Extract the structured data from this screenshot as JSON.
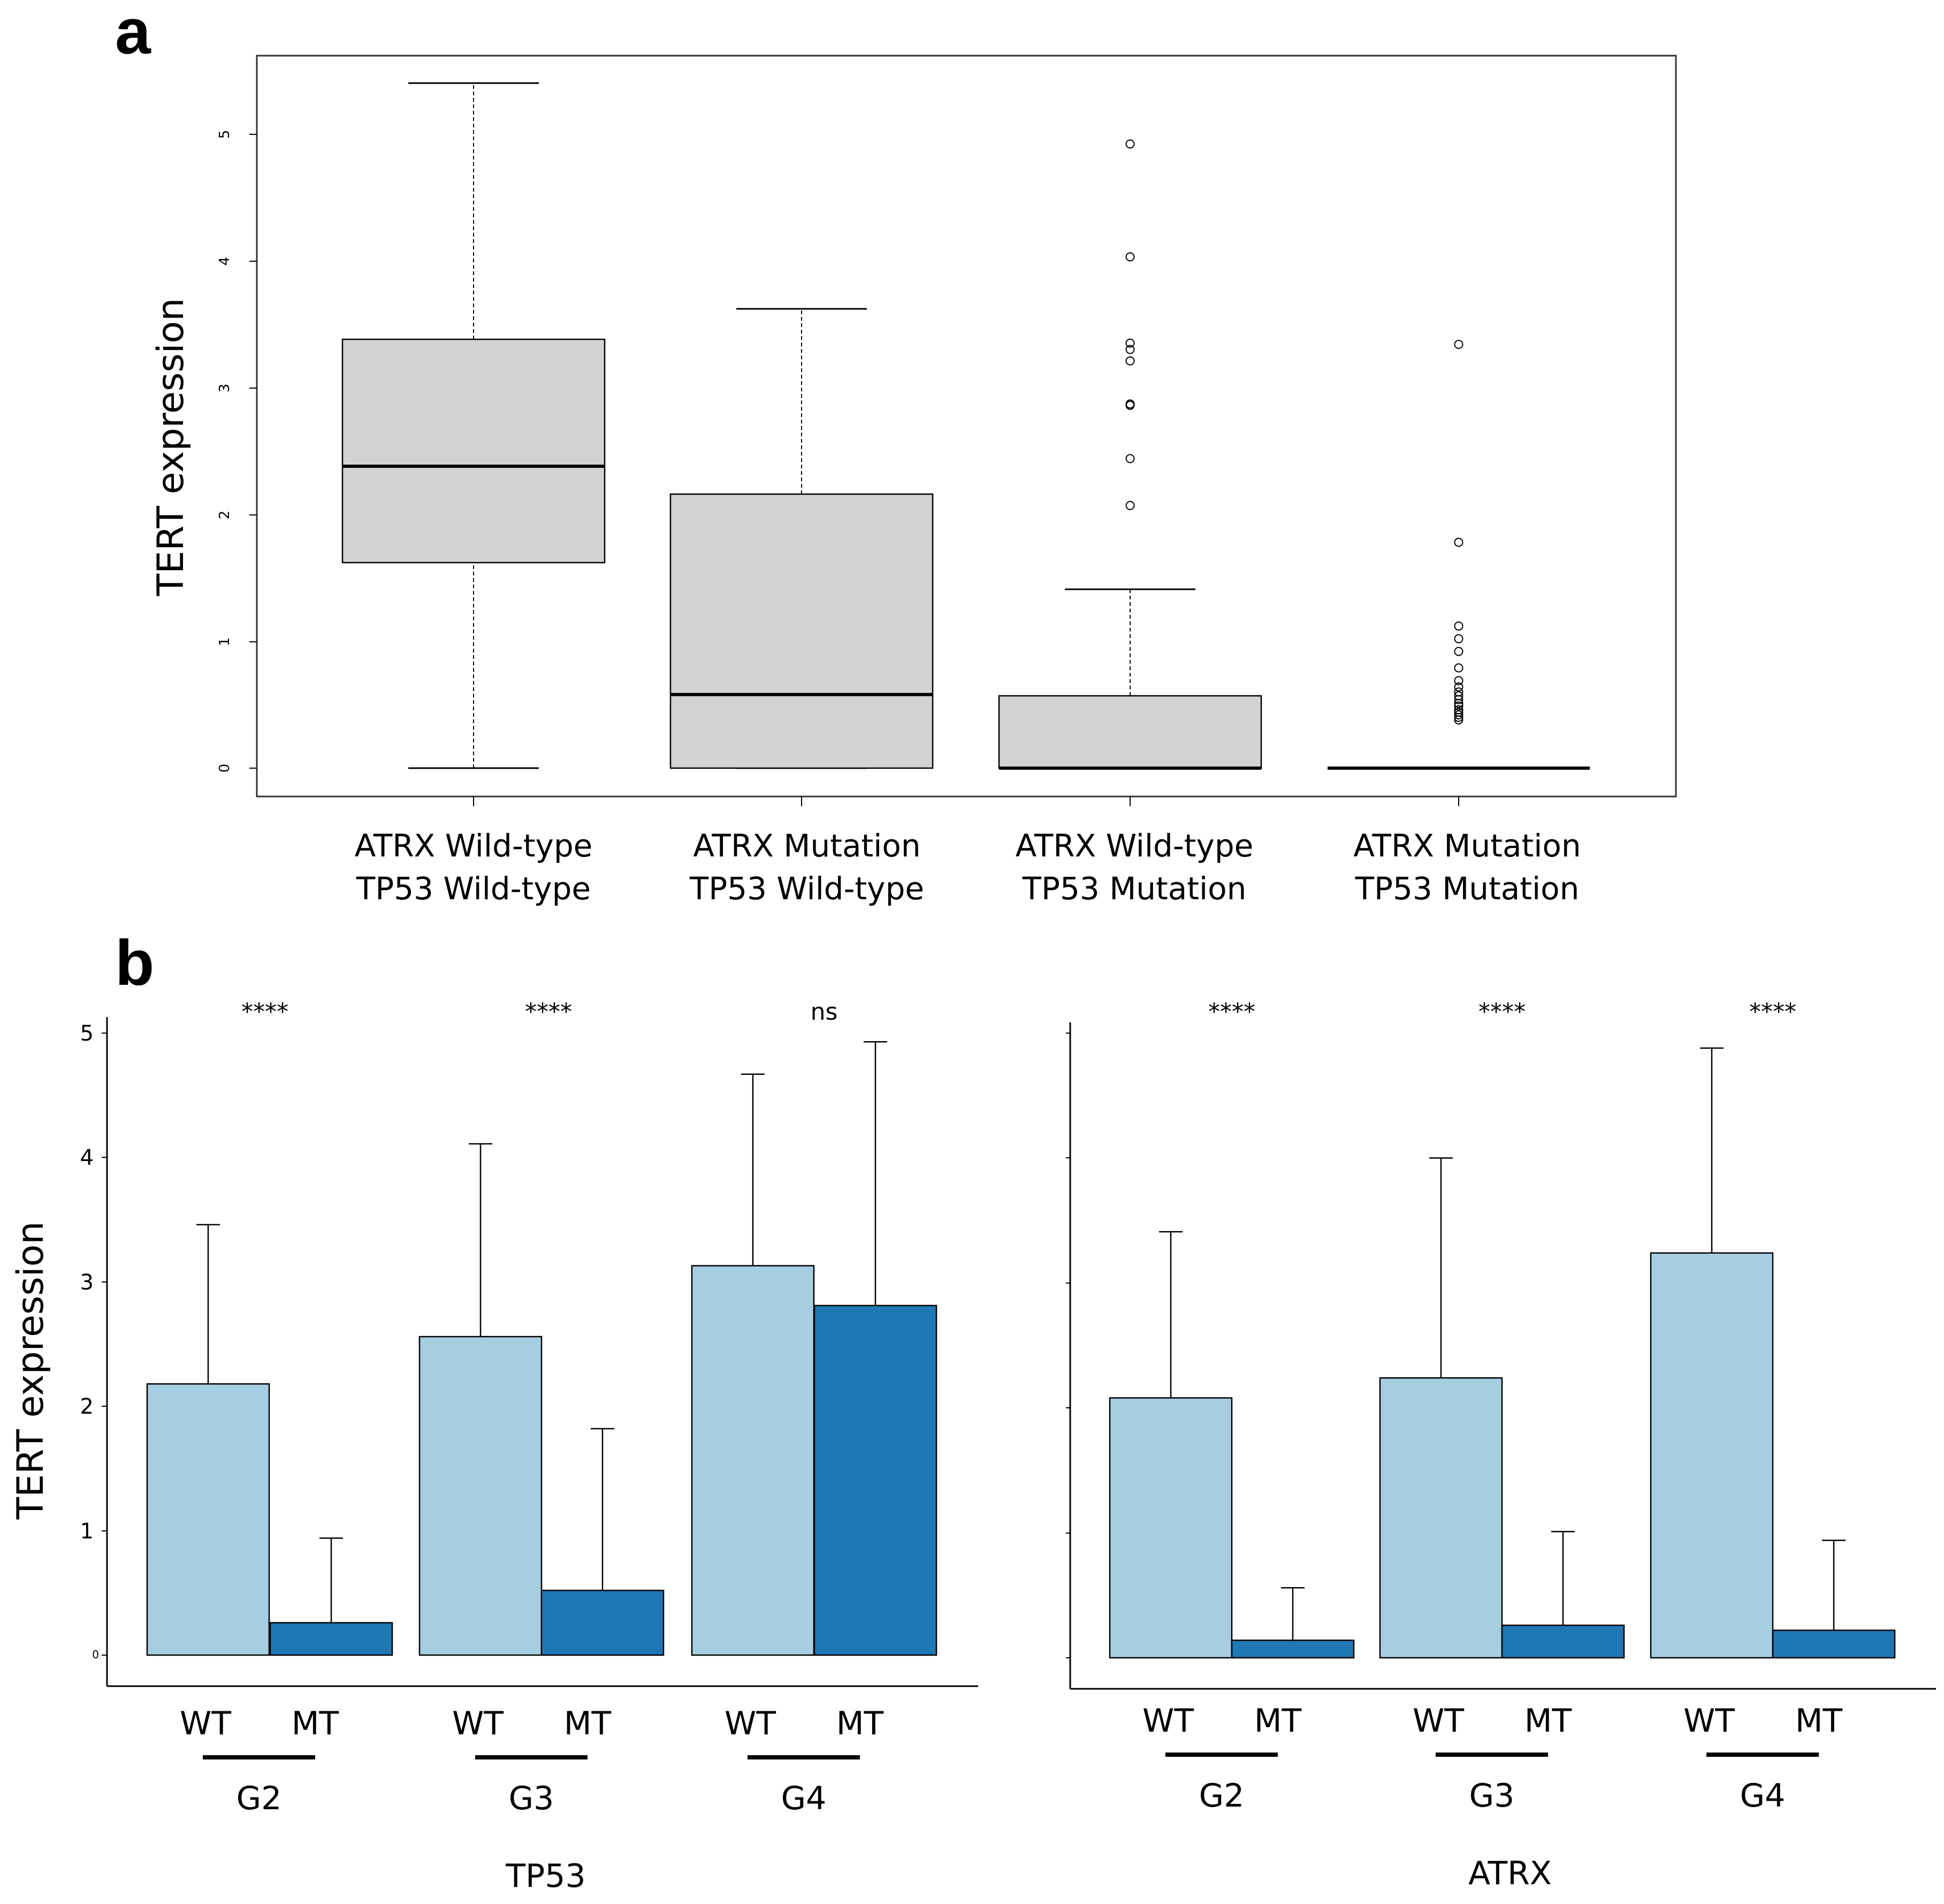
{
  "panels": {
    "a": "a",
    "b": "b"
  },
  "chart_data": [
    {
      "type": "box",
      "ylabel": "TERT expression",
      "ylim": [
        0,
        5.5
      ],
      "yticks": [
        "0",
        "1",
        "2",
        "3",
        "4",
        "5"
      ],
      "categories": [
        {
          "line1": "ATRX Wild-type",
          "line2": "TP53 Wild-type"
        },
        {
          "line1": "ATRX Mutation",
          "line2": "TP53 Wild-type"
        },
        {
          "line1": "ATRX Wild-type",
          "line2": "TP53 Mutation"
        },
        {
          "line1": "ATRX Mutation",
          "line2": "TP53 Mutation"
        }
      ],
      "boxes": [
        {
          "min": 0,
          "q1": 1.62,
          "median": 2.38,
          "q3": 3.38,
          "max": 5.4,
          "outliers": []
        },
        {
          "min": 0,
          "q1": 0,
          "median": 0.58,
          "q3": 2.16,
          "max": 3.62,
          "outliers": []
        },
        {
          "min": 0,
          "q1": 0,
          "median": 0,
          "q3": 0.57,
          "max": 1.41,
          "outliers": [
            4.92,
            4.03,
            3.35,
            3.3,
            3.21,
            2.87,
            2.86,
            2.44,
            2.07
          ]
        },
        {
          "min": 0,
          "q1": 0,
          "median": 0,
          "q3": 0,
          "max": 0,
          "outliers": [
            3.34,
            1.78,
            1.12,
            1.02,
            0.92,
            0.79,
            0.69,
            0.64,
            0.6,
            0.57,
            0.54,
            0.51,
            0.49,
            0.46,
            0.44,
            0.42,
            0.4,
            0.38
          ]
        }
      ]
    },
    {
      "type": "bar",
      "ylabel": "TERT expression",
      "xlabel": "TP53",
      "ylim": [
        0,
        5
      ],
      "yticks": [
        "0",
        "1",
        "2",
        "3",
        "4",
        "5"
      ],
      "groups": [
        {
          "name": "G2",
          "wt_label": "WT",
          "mt_label": "MT",
          "wt": 2.18,
          "wt_err": 3.46,
          "mt": 0.26,
          "mt_err": 0.94,
          "sig": "****"
        },
        {
          "name": "G3",
          "wt_label": "WT",
          "mt_label": "MT",
          "wt": 2.56,
          "wt_err": 4.11,
          "mt": 0.52,
          "mt_err": 1.82,
          "sig": "****"
        },
        {
          "name": "G4",
          "wt_label": "WT",
          "mt_label": "MT",
          "wt": 3.13,
          "wt_err": 4.67,
          "mt": 2.81,
          "mt_err": 4.93,
          "sig": "ns"
        }
      ]
    },
    {
      "type": "bar",
      "ylabel": "",
      "xlabel": "ATRX",
      "ylim": [
        0,
        5
      ],
      "groups": [
        {
          "name": "G2",
          "wt_label": "WT",
          "mt_label": "MT",
          "wt": 2.08,
          "wt_err": 3.41,
          "mt": 0.14,
          "mt_err": 0.56,
          "sig": "****"
        },
        {
          "name": "G3",
          "wt_label": "WT",
          "mt_label": "MT",
          "wt": 2.24,
          "wt_err": 4.0,
          "mt": 0.26,
          "mt_err": 1.01,
          "sig": "****"
        },
        {
          "name": "G4",
          "wt_label": "WT",
          "mt_label": "MT",
          "wt": 3.24,
          "wt_err": 4.88,
          "mt": 0.22,
          "mt_err": 0.94,
          "sig": "****"
        }
      ]
    }
  ],
  "colors": {
    "box_fill": "#d3d3d3",
    "wt_bar": "#a6cee3",
    "mt_bar": "#1f78b4",
    "axis": "#000000"
  }
}
